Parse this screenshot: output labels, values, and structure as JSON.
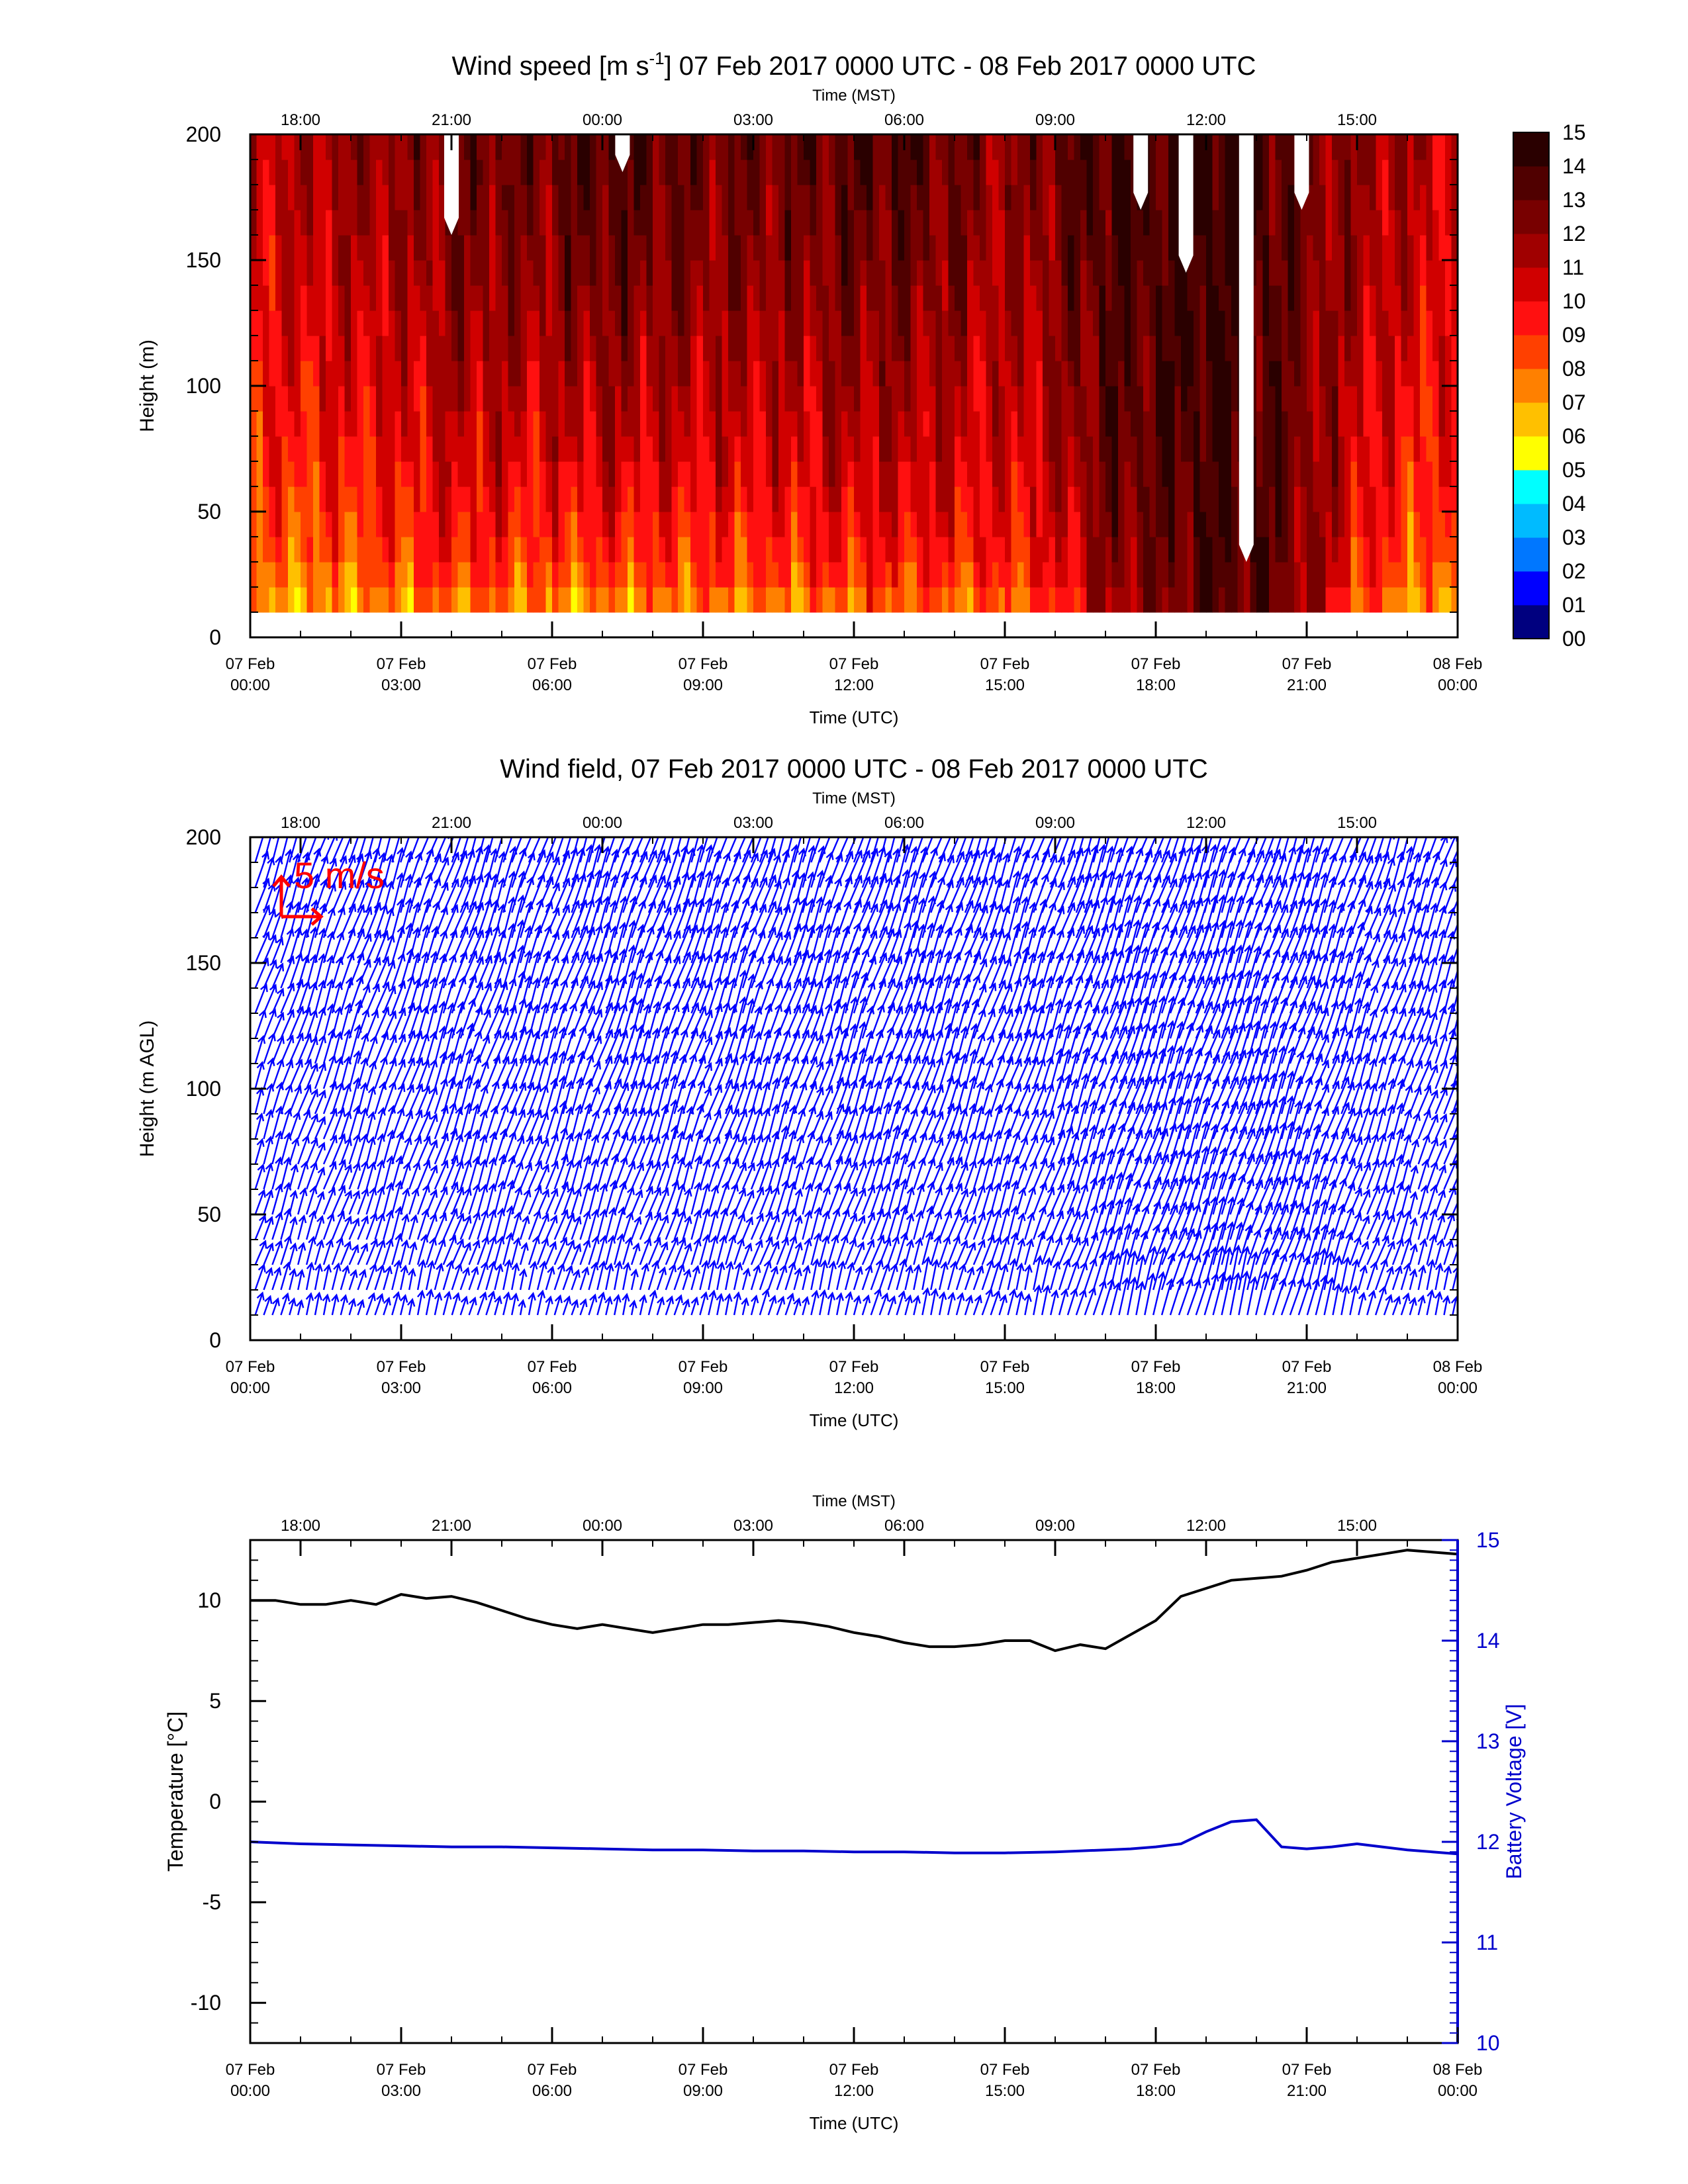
{
  "colors": {
    "wind_levels": [
      "#00007f",
      "#0000ff",
      "#0077ff",
      "#00bbff",
      "#00ffff",
      "#ffff00",
      "#ffc000",
      "#ff8000",
      "#ff4000",
      "#ff1010",
      "#d00000",
      "#a00000",
      "#780000",
      "#500000",
      "#2a0000"
    ],
    "no_data": "#ffffff",
    "vector": "#0000ff",
    "reference_vector": "#ff0000",
    "temperature": "#000000",
    "battery": "#0000cc"
  },
  "time_axes": {
    "utc_title": "Time (UTC)",
    "mst_title": "Time (MST)",
    "utc_ticks": [
      {
        "hour": 0,
        "date": "07 Feb",
        "time": "00:00"
      },
      {
        "hour": 3,
        "date": "07 Feb",
        "time": "03:00"
      },
      {
        "hour": 6,
        "date": "07 Feb",
        "time": "06:00"
      },
      {
        "hour": 9,
        "date": "07 Feb",
        "time": "09:00"
      },
      {
        "hour": 12,
        "date": "07 Feb",
        "time": "12:00"
      },
      {
        "hour": 15,
        "date": "07 Feb",
        "time": "15:00"
      },
      {
        "hour": 18,
        "date": "07 Feb",
        "time": "18:00"
      },
      {
        "hour": 21,
        "date": "07 Feb",
        "time": "21:00"
      },
      {
        "hour": 24,
        "date": "08 Feb",
        "time": "00:00"
      }
    ],
    "mst_ticks": [
      {
        "hour": 1,
        "label": "18:00"
      },
      {
        "hour": 4,
        "label": "21:00"
      },
      {
        "hour": 7,
        "label": "00:00"
      },
      {
        "hour": 10,
        "label": "03:00"
      },
      {
        "hour": 13,
        "label": "06:00"
      },
      {
        "hour": 16,
        "label": "09:00"
      },
      {
        "hour": 19,
        "label": "12:00"
      },
      {
        "hour": 22,
        "label": "15:00"
      }
    ]
  },
  "chart_data": [
    {
      "type": "heatmap",
      "title": "Wind speed [m s",
      "title_sup": "-1",
      "title_rest": "] 07 Feb 2017 0000 UTC - 08 Feb 2017 0000 UTC",
      "ylabel": "Height (m)",
      "xlabel": "Time (UTC)",
      "xlim": [
        0,
        24
      ],
      "ylim": [
        0,
        200
      ],
      "yticks": [
        0,
        50,
        100,
        150,
        200
      ],
      "height_range_m": [
        10,
        200
      ],
      "colorbar_labels": [
        "00",
        "01",
        "02",
        "03",
        "04",
        "05",
        "06",
        "07",
        "08",
        "09",
        "10",
        "11",
        "12",
        "13",
        "14",
        "15"
      ],
      "wind_speed_profile": {
        "hour": [
          0,
          1,
          2,
          3,
          4,
          5,
          6,
          7,
          8,
          9,
          10,
          11,
          12,
          13,
          14,
          15,
          16,
          17,
          18,
          19,
          20,
          21,
          22,
          23,
          24
        ],
        "speed_10m": [
          6,
          6,
          6,
          6.5,
          7,
          6.5,
          6,
          6,
          6,
          6.5,
          6.5,
          6.5,
          7,
          7,
          7,
          7.5,
          8,
          11,
          12,
          13,
          13,
          12,
          8,
          6.5,
          6
        ],
        "speed_200m": [
          11,
          11.5,
          12,
          12,
          13,
          13,
          13,
          14,
          13.5,
          13,
          13,
          13,
          13.5,
          13.5,
          13,
          12,
          13,
          14,
          14,
          14.5,
          14,
          12.5,
          12,
          11.5,
          11
        ]
      },
      "no_data_gaps": [
        {
          "hour": 4.0,
          "bottom_m": 160
        },
        {
          "hour": 7.4,
          "bottom_m": 185
        },
        {
          "hour": 17.7,
          "bottom_m": 170
        },
        {
          "hour": 18.6,
          "bottom_m": 145
        },
        {
          "hour": 19.8,
          "bottom_m": 30
        },
        {
          "hour": 20.9,
          "bottom_m": 170
        }
      ]
    },
    {
      "type": "scatter",
      "title": "Wind field, 07 Feb 2017 0000 UTC - 08 Feb 2017 0000 UTC",
      "ylabel": "Height (m AGL)",
      "xlabel": "Time (UTC)",
      "xlim": [
        0,
        24
      ],
      "ylim": [
        0,
        200
      ],
      "yticks": [
        0,
        50,
        100,
        150,
        200
      ],
      "reference_vector_label": "5 m/s",
      "reference_vector_ms": 5,
      "vector_direction": "from south-southwest (pointing north-northeast)"
    },
    {
      "type": "line",
      "xlabel": "Time (UTC)",
      "ylabel": "Temperature [°C]",
      "y2label": "Battery Voltage [V]",
      "xlim": [
        0,
        24
      ],
      "ylim": [
        -12,
        13
      ],
      "y2lim": [
        10,
        15
      ],
      "yticks": [
        10,
        5,
        0,
        -5,
        -10
      ],
      "y2ticks": [
        10,
        11,
        12,
        13,
        14,
        15
      ],
      "series": [
        {
          "name": "Temperature",
          "axis": "left",
          "x": [
            0,
            0.5,
            1,
            1.5,
            2,
            2.5,
            3,
            3.5,
            4,
            4.5,
            5,
            5.5,
            6,
            6.5,
            7,
            7.5,
            8,
            8.5,
            9,
            9.5,
            10,
            10.5,
            11,
            11.5,
            12,
            12.5,
            13,
            13.5,
            14,
            14.5,
            15,
            15.5,
            16,
            16.5,
            17,
            17.5,
            18,
            18.5,
            19,
            19.5,
            20,
            20.5,
            21,
            21.5,
            22,
            22.5,
            23,
            23.5,
            24
          ],
          "values": [
            10.0,
            10.0,
            9.8,
            9.8,
            10.0,
            9.8,
            10.3,
            10.1,
            10.2,
            9.9,
            9.5,
            9.1,
            8.8,
            8.6,
            8.8,
            8.6,
            8.4,
            8.6,
            8.8,
            8.8,
            8.9,
            9.0,
            8.9,
            8.7,
            8.4,
            8.2,
            7.9,
            7.7,
            7.7,
            7.8,
            8.0,
            8.0,
            7.5,
            7.8,
            7.6,
            8.3,
            9.0,
            10.2,
            10.6,
            11.0,
            11.1,
            11.2,
            11.5,
            11.9,
            12.1,
            12.3,
            12.5,
            12.4,
            12.3
          ]
        },
        {
          "name": "Battery Voltage",
          "axis": "right",
          "x": [
            0,
            1,
            2,
            3,
            4,
            5,
            6,
            7,
            8,
            9,
            10,
            11,
            12,
            13,
            14,
            15,
            16,
            17,
            17.5,
            18,
            18.5,
            19,
            19.5,
            20,
            20.5,
            21,
            21.5,
            22,
            22.5,
            23,
            23.5,
            24
          ],
          "values": [
            12.0,
            11.98,
            11.97,
            11.96,
            11.95,
            11.95,
            11.94,
            11.93,
            11.92,
            11.92,
            11.91,
            11.91,
            11.9,
            11.9,
            11.89,
            11.89,
            11.9,
            11.92,
            11.93,
            11.95,
            11.98,
            12.1,
            12.2,
            12.22,
            11.95,
            11.93,
            11.95,
            11.98,
            11.95,
            11.92,
            11.9,
            11.88
          ]
        }
      ]
    }
  ]
}
